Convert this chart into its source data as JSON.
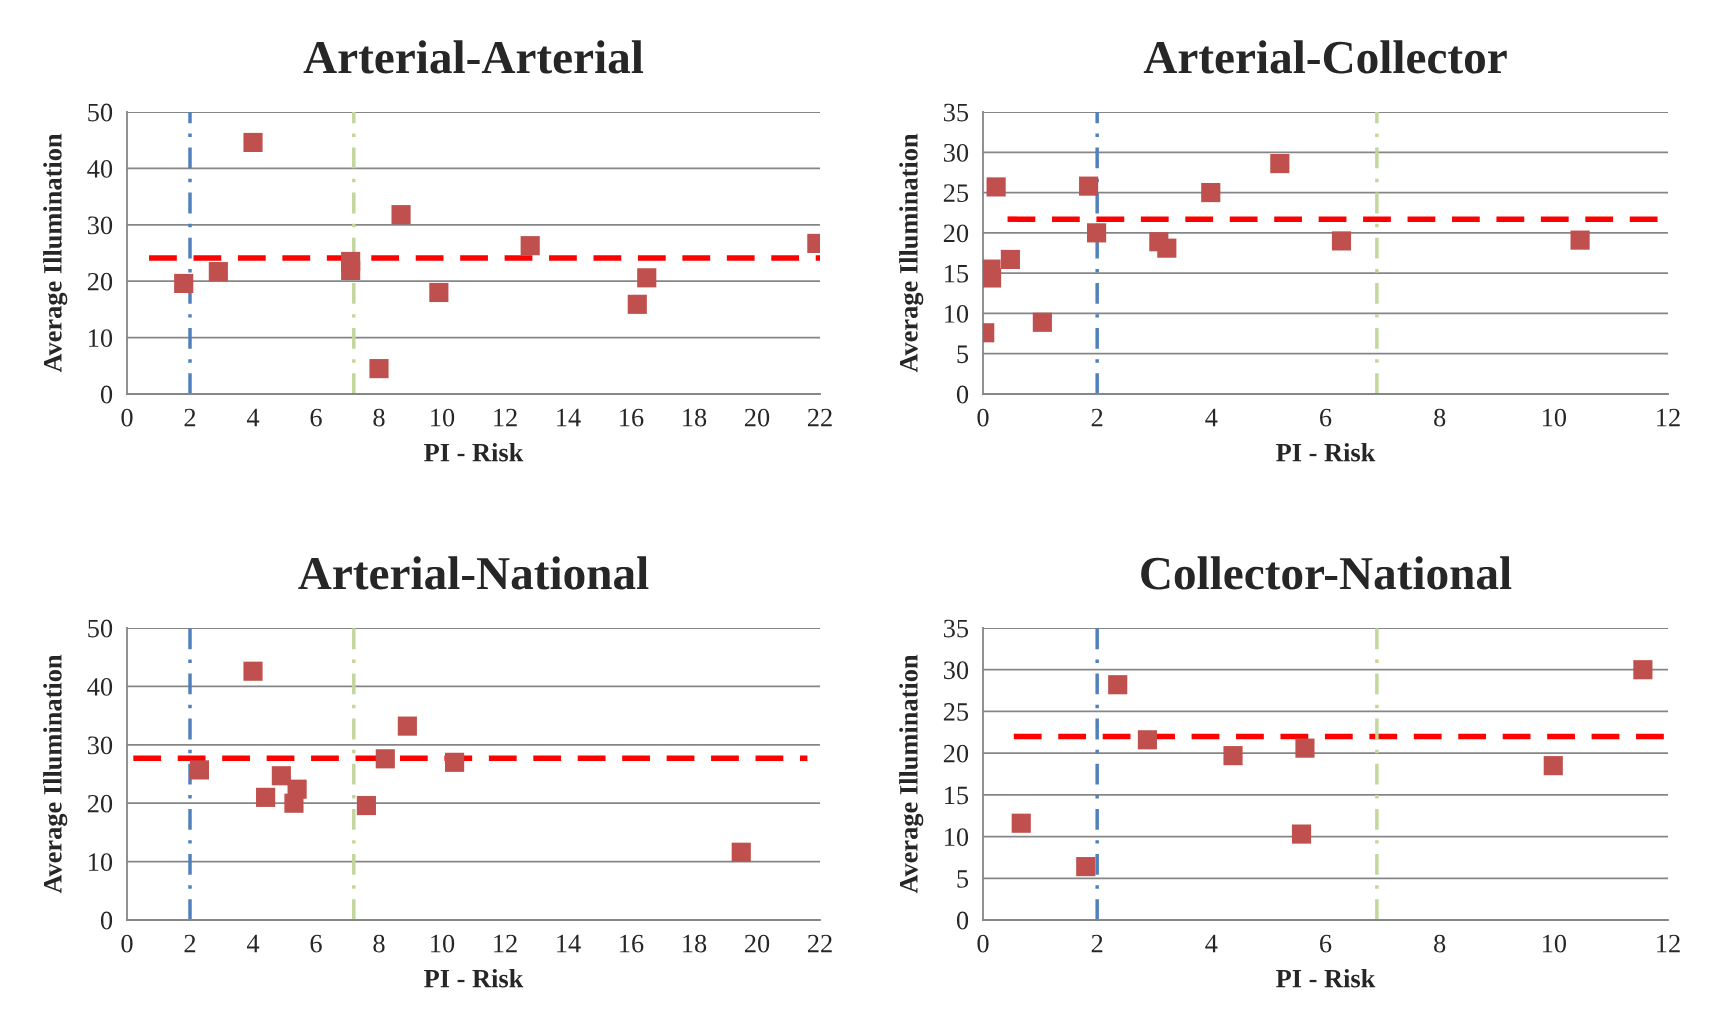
{
  "chart_data": [
    {
      "type": "scatter",
      "title": "Arterial-Arterial",
      "xlabel": "PI - Risk",
      "ylabel": "Average Illumination",
      "xlim": [
        0,
        22
      ],
      "xticks": [
        0,
        2,
        4,
        6,
        8,
        10,
        12,
        14,
        16,
        18,
        20,
        22
      ],
      "ylim": [
        0,
        50
      ],
      "yticks": [
        0,
        10,
        20,
        30,
        40,
        50
      ],
      "grid": "y",
      "marker": "square",
      "series": [
        {
          "color": "#c0504d",
          "x": [
            1.8,
            2.9,
            4.0,
            7.1,
            7.1,
            8.0,
            8.7,
            9.9,
            12.8,
            16.2,
            16.5,
            21.9
          ],
          "values": [
            19.6,
            21.7,
            44.6,
            23.5,
            21.9,
            4.5,
            31.8,
            18.0,
            26.3,
            15.9,
            20.6,
            26.7
          ]
        },
        {
          "type": "line",
          "color": "#ff0000",
          "line_style": "dashed",
          "marker": "none",
          "x": [
            0.7,
            22
          ],
          "values": [
            24.1,
            24.1
          ]
        }
      ],
      "ref_lines": [
        {
          "axis": "x",
          "value": 2,
          "color": "#4f81bd",
          "line_style": "dashdot"
        },
        {
          "axis": "x",
          "value": 7.2,
          "color": "#c3d69b",
          "line_style": "dashdot"
        }
      ]
    },
    {
      "type": "scatter",
      "title": "Arterial-Collector",
      "xlabel": "PI - Risk",
      "ylabel": "Average Illumination",
      "xlim": [
        0,
        12
      ],
      "xticks": [
        0,
        2,
        4,
        6,
        8,
        10,
        12
      ],
      "ylim": [
        0,
        35
      ],
      "yticks": [
        0,
        5,
        10,
        15,
        20,
        25,
        30,
        35
      ],
      "grid": "y",
      "marker": "square",
      "series": [
        {
          "color": "#c0504d",
          "x": [
            0.03,
            0.23,
            0.14,
            0.15,
            0.48,
            1.04,
            1.85,
            1.99,
            3.08,
            3.22,
            3.99,
            5.2,
            6.28,
            10.46
          ],
          "values": [
            7.6,
            25.7,
            15.5,
            14.4,
            16.7,
            8.9,
            25.8,
            20.0,
            18.9,
            18.1,
            25.0,
            28.6,
            19.0,
            19.1
          ]
        },
        {
          "type": "line",
          "color": "#ff0000",
          "line_style": "dashed",
          "marker": "none",
          "x": [
            0.43,
            11.9
          ],
          "values": [
            21.7,
            21.7
          ]
        }
      ],
      "ref_lines": [
        {
          "axis": "x",
          "value": 2,
          "color": "#4f81bd",
          "line_style": "dashdot"
        },
        {
          "axis": "x",
          "value": 6.9,
          "color": "#c3d69b",
          "line_style": "dashdot"
        }
      ]
    },
    {
      "type": "scatter",
      "title": "Arterial-National",
      "xlabel": "PI - Risk",
      "ylabel": "Average Illumination",
      "xlim": [
        0,
        22
      ],
      "xticks": [
        0,
        2,
        4,
        6,
        8,
        10,
        12,
        14,
        16,
        18,
        20,
        22
      ],
      "ylim": [
        0,
        50
      ],
      "yticks": [
        0,
        10,
        20,
        30,
        40,
        50
      ],
      "grid": "y",
      "marker": "square",
      "series": [
        {
          "color": "#c0504d",
          "x": [
            2.3,
            4.0,
            4.4,
            4.9,
            5.4,
            5.3,
            7.6,
            8.2,
            8.9,
            10.4,
            19.5
          ],
          "values": [
            25.7,
            42.6,
            21.0,
            24.7,
            22.4,
            20.0,
            19.6,
            27.6,
            33.2,
            27.0,
            11.6
          ]
        },
        {
          "type": "line",
          "color": "#ff0000",
          "line_style": "dashed",
          "marker": "none",
          "x": [
            0.2,
            21.6
          ],
          "values": [
            27.7,
            27.7
          ]
        }
      ],
      "ref_lines": [
        {
          "axis": "x",
          "value": 2,
          "color": "#4f81bd",
          "line_style": "dashdot"
        },
        {
          "axis": "x",
          "value": 7.2,
          "color": "#c3d69b",
          "line_style": "dashdot"
        }
      ]
    },
    {
      "type": "scatter",
      "title": "Collector-National",
      "xlabel": "PI - Risk",
      "ylabel": "Average Illumination",
      "xlim": [
        0,
        12
      ],
      "xticks": [
        0,
        2,
        4,
        6,
        8,
        10,
        12
      ],
      "ylim": [
        0,
        35
      ],
      "yticks": [
        0,
        5,
        10,
        15,
        20,
        25,
        30,
        35
      ],
      "grid": "y",
      "marker": "square",
      "series": [
        {
          "color": "#c0504d",
          "x": [
            0.67,
            1.8,
            2.36,
            2.88,
            4.38,
            5.64,
            5.58,
            9.99,
            11.56
          ],
          "values": [
            11.6,
            6.4,
            28.2,
            21.6,
            19.7,
            20.6,
            10.3,
            18.5,
            30.0
          ]
        },
        {
          "type": "line",
          "color": "#ff0000",
          "line_style": "dashed",
          "marker": "none",
          "x": [
            0.54,
            12
          ],
          "values": [
            22.0,
            22.0
          ]
        }
      ],
      "ref_lines": [
        {
          "axis": "x",
          "value": 2,
          "color": "#4f81bd",
          "line_style": "dashdot"
        },
        {
          "axis": "x",
          "value": 6.9,
          "color": "#c3d69b",
          "line_style": "dashdot"
        }
      ]
    }
  ]
}
